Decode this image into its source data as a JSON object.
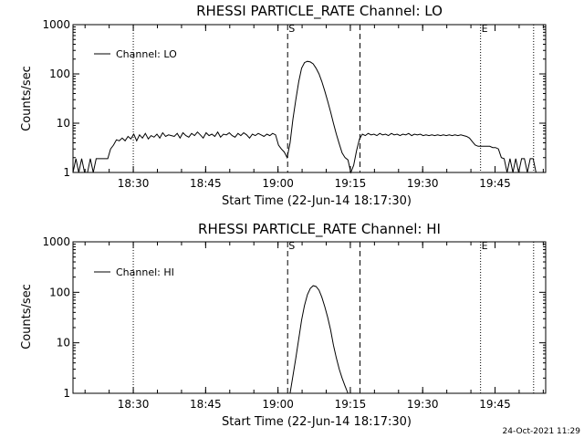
{
  "chart_data": [
    {
      "type": "line",
      "title": "RHESSI PARTICLE_RATE Channel: LO",
      "xlabel": "Start Time (22-Jun-14 18:17:30)",
      "ylabel": "Counts/sec",
      "yscale": "log",
      "ylim": [
        1,
        1000
      ],
      "xlim_minutes": [
        0,
        98
      ],
      "x_ticks": [
        "18:30",
        "18:45",
        "19:00",
        "19:15",
        "19:30",
        "19:45"
      ],
      "x_ticks_minutes": [
        12.5,
        27.5,
        42.5,
        57.5,
        72.5,
        87.5
      ],
      "y_ticks": [
        "1",
        "10",
        "100",
        "1000"
      ],
      "y_tick_values": [
        1,
        10,
        100,
        1000
      ],
      "legend": {
        "label": "Channel: LO",
        "placement": "top-left"
      },
      "markers": [
        {
          "label": "S",
          "minute": 44.5,
          "style": "dashed"
        },
        {
          "label": "E",
          "minute": 84.5,
          "style": "dotted"
        }
      ],
      "vlines": [
        {
          "minute": 12.5,
          "style": "dotted"
        },
        {
          "minute": 44.5,
          "style": "dashed"
        },
        {
          "minute": 59.5,
          "style": "dashed"
        },
        {
          "minute": 84.5,
          "style": "dotted"
        },
        {
          "minute": 95.5,
          "style": "dotted"
        }
      ],
      "series": [
        {
          "name": "Channel: LO",
          "x": [
            0,
            0.6,
            1.2,
            1.8,
            2.4,
            3,
            3.6,
            4.2,
            4.8,
            5.4,
            6,
            6.6,
            7.2,
            7.8,
            8.4,
            9,
            9.6,
            10.2,
            10.8,
            11.4,
            12,
            12.6,
            13.2,
            13.8,
            14.4,
            15,
            15.6,
            16.2,
            16.8,
            17.4,
            18,
            18.6,
            19.2,
            19.8,
            20.4,
            21,
            21.6,
            22.2,
            22.8,
            23.4,
            24,
            24.6,
            25.2,
            25.8,
            26.4,
            27,
            27.6,
            28.2,
            28.8,
            29.4,
            30,
            30.6,
            31.2,
            31.8,
            32.4,
            33,
            33.6,
            34.2,
            34.8,
            35.4,
            36,
            36.6,
            37.2,
            37.8,
            38.4,
            39,
            39.6,
            40.2,
            40.8,
            41.4,
            42,
            42.6,
            43.2,
            43.8,
            44.4,
            45,
            45.6,
            46.2,
            46.8,
            47.4,
            48,
            48.6,
            49.2,
            49.8,
            50.4,
            51,
            51.6,
            52.2,
            52.8,
            53.4,
            54,
            54.6,
            55.2,
            55.8,
            56.4,
            57,
            57.6,
            58.2,
            58.8,
            59.4,
            60,
            60.6,
            61.2,
            61.8,
            62.4,
            63,
            63.6,
            64.2,
            64.8,
            65.4,
            66,
            66.6,
            67.2,
            67.8,
            68.4,
            69,
            69.6,
            70.2,
            70.8,
            71.4,
            72,
            72.6,
            73.2,
            73.8,
            74.4,
            75,
            75.6,
            76.2,
            76.8,
            77.4,
            78,
            78.6,
            79.2,
            79.8,
            80.4,
            81,
            81.6,
            82.2,
            82.8,
            83.4,
            84,
            84.6,
            85.2,
            85.8,
            86.4,
            87,
            87.6,
            88.2,
            88.8,
            89.4,
            90,
            90.6,
            91.2,
            91.8,
            92.4,
            93,
            93.6,
            94.2,
            94.8,
            95.4,
            96
          ],
          "y": [
            1,
            1.9,
            1,
            1.9,
            1,
            1,
            1.9,
            1,
            1.9,
            1.9,
            1.9,
            1.9,
            1.9,
            3.0,
            3.6,
            4.6,
            4.4,
            5.0,
            4.4,
            5.4,
            4.8,
            6.0,
            4.4,
            5.8,
            5.0,
            6.2,
            4.8,
            5.6,
            5.2,
            6.0,
            5.0,
            6.4,
            5.4,
            5.8,
            5.6,
            5.4,
            6.2,
            5.0,
            6.4,
            5.6,
            5.2,
            6.2,
            5.6,
            6.6,
            5.8,
            5.0,
            6.4,
            5.6,
            6.0,
            5.4,
            6.6,
            5.2,
            6.0,
            5.8,
            6.4,
            5.6,
            5.2,
            6.2,
            5.6,
            6.4,
            5.8,
            5.0,
            6.0,
            5.6,
            6.2,
            5.8,
            5.4,
            6.0,
            5.6,
            6.2,
            5.8,
            3.6,
            3.0,
            2.6,
            2.0,
            4.0,
            12,
            30,
            70,
            130,
            170,
            180,
            175,
            160,
            130,
            100,
            70,
            45,
            28,
            17,
            10,
            6.0,
            3.8,
            2.5,
            2.0,
            1.8,
            1.0,
            1.4,
            2.8,
            4.8,
            6.0,
            5.6,
            6.2,
            5.8,
            6.0,
            5.6,
            6.2,
            5.8,
            6.0,
            5.6,
            6.2,
            5.8,
            6.0,
            5.6,
            6.0,
            5.8,
            6.2,
            5.6,
            6.0,
            5.8,
            6.0,
            5.6,
            5.8,
            5.6,
            5.8,
            5.6,
            5.8,
            5.6,
            5.8,
            5.6,
            5.8,
            5.6,
            5.8,
            5.6,
            5.8,
            5.6,
            5.4,
            5.0,
            4.2,
            3.6,
            3.4,
            3.4,
            3.4,
            3.4,
            3.4,
            3.2,
            3.2,
            3.0,
            2.0,
            1.9,
            1.0,
            1.9,
            1.0,
            1.9,
            1.0,
            1.9,
            1.9,
            1.0,
            1.9,
            1.9,
            1
          ]
        }
      ]
    },
    {
      "type": "line",
      "title": "RHESSI PARTICLE_RATE Channel: HI",
      "xlabel": "Start Time (22-Jun-14 18:17:30)",
      "ylabel": "Counts/sec",
      "yscale": "log",
      "ylim": [
        1,
        1000
      ],
      "xlim_minutes": [
        0,
        98
      ],
      "x_ticks": [
        "18:30",
        "18:45",
        "19:00",
        "19:15",
        "19:30",
        "19:45"
      ],
      "x_ticks_minutes": [
        12.5,
        27.5,
        42.5,
        57.5,
        72.5,
        87.5
      ],
      "y_ticks": [
        "1",
        "10",
        "100",
        "1000"
      ],
      "y_tick_values": [
        1,
        10,
        100,
        1000
      ],
      "legend": {
        "label": "Channel: HI",
        "placement": "top-left"
      },
      "markers": [
        {
          "label": "S",
          "minute": 44.5,
          "style": "dashed"
        },
        {
          "label": "E",
          "minute": 84.5,
          "style": "dotted"
        }
      ],
      "vlines": [
        {
          "minute": 12.5,
          "style": "dotted"
        },
        {
          "minute": 44.5,
          "style": "dashed"
        },
        {
          "minute": 59.5,
          "style": "dashed"
        },
        {
          "minute": 84.5,
          "style": "dotted"
        },
        {
          "minute": 95.5,
          "style": "dotted"
        }
      ],
      "series": [
        {
          "name": "Channel: HI",
          "x": [
            45.0,
            45.6,
            46.2,
            46.8,
            47.4,
            48.0,
            48.6,
            49.2,
            49.8,
            50.4,
            51.0,
            51.6,
            52.2,
            52.8,
            53.4,
            54.0,
            54.6,
            55.2,
            55.8,
            56.4,
            57.0
          ],
          "y": [
            1,
            2.2,
            5,
            12,
            28,
            55,
            90,
            120,
            135,
            130,
            110,
            80,
            52,
            32,
            18,
            9,
            5,
            3,
            2,
            1.4,
            1
          ]
        }
      ]
    }
  ],
  "footer": {
    "timestamp": "24-Oct-2021 11:29"
  }
}
